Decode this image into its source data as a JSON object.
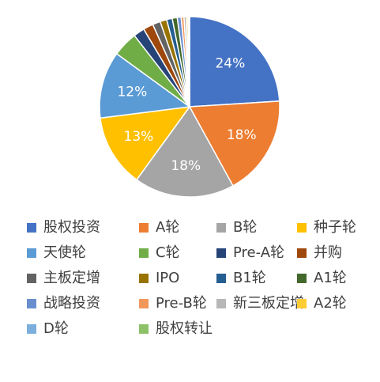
{
  "chart_data": {
    "type": "pie",
    "title": "",
    "slices": [
      {
        "name": "股权投资",
        "value": 24,
        "label": "24%",
        "color": "#4472C4"
      },
      {
        "name": "A轮",
        "value": 18,
        "label": "18%",
        "color": "#ED7D31"
      },
      {
        "name": "B轮",
        "value": 18,
        "label": "18%",
        "color": "#A5A5A5"
      },
      {
        "name": "种子轮",
        "value": 13,
        "label": "13%",
        "color": "#FFC000"
      },
      {
        "name": "天使轮",
        "value": 12,
        "label": "12%",
        "color": "#5B9BD5"
      },
      {
        "name": "C轮",
        "value": 4.5,
        "label": "",
        "color": "#70AD47"
      },
      {
        "name": "Pre-A轮",
        "value": 2,
        "label": "",
        "color": "#264478"
      },
      {
        "name": "并购",
        "value": 1.8,
        "label": "",
        "color": "#9E480E"
      },
      {
        "name": "主板定增",
        "value": 1.4,
        "label": "",
        "color": "#636363"
      },
      {
        "name": "IPO",
        "value": 1.2,
        "label": "",
        "color": "#997300"
      },
      {
        "name": "B1轮",
        "value": 1,
        "label": "",
        "color": "#255E91"
      },
      {
        "name": "A1轮",
        "value": 0.9,
        "label": "",
        "color": "#43682B"
      },
      {
        "name": "战略投资",
        "value": 0.7,
        "label": "",
        "color": "#698ED0"
      },
      {
        "name": "Pre-B轮",
        "value": 0.5,
        "label": "",
        "color": "#F1975A"
      },
      {
        "name": "新三板定增",
        "value": 0.4,
        "label": "",
        "color": "#B7B7B7"
      },
      {
        "name": "A2轮",
        "value": 0.3,
        "label": "",
        "color": "#FFCD33"
      },
      {
        "name": "D轮",
        "value": 0.2,
        "label": "",
        "color": "#7CAFDD"
      },
      {
        "name": "股权转让",
        "value": 0.1,
        "label": "",
        "color": "#8CC168"
      }
    ],
    "legend_position": "bottom",
    "start_angle": "top, clockwise"
  }
}
